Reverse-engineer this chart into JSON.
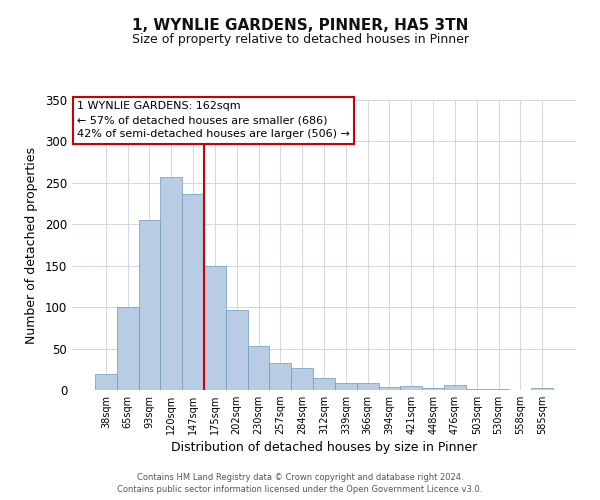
{
  "title": "1, WYNLIE GARDENS, PINNER, HA5 3TN",
  "subtitle": "Size of property relative to detached houses in Pinner",
  "xlabel": "Distribution of detached houses by size in Pinner",
  "ylabel": "Number of detached properties",
  "bar_labels": [
    "38sqm",
    "65sqm",
    "93sqm",
    "120sqm",
    "147sqm",
    "175sqm",
    "202sqm",
    "230sqm",
    "257sqm",
    "284sqm",
    "312sqm",
    "339sqm",
    "366sqm",
    "394sqm",
    "421sqm",
    "448sqm",
    "476sqm",
    "503sqm",
    "530sqm",
    "558sqm",
    "585sqm"
  ],
  "bar_heights": [
    19,
    100,
    205,
    257,
    237,
    150,
    96,
    53,
    33,
    26,
    15,
    8,
    8,
    4,
    5,
    2,
    6,
    1,
    1,
    0,
    2
  ],
  "bar_color": "#b8cce4",
  "bar_edge_color": "#7098c0",
  "vline_x": 4.5,
  "vline_color": "#cc0000",
  "ylim": [
    0,
    350
  ],
  "yticks": [
    0,
    50,
    100,
    150,
    200,
    250,
    300,
    350
  ],
  "annotation_title": "1 WYNLIE GARDENS: 162sqm",
  "annotation_line1": "← 57% of detached houses are smaller (686)",
  "annotation_line2": "42% of semi-detached houses are larger (506) →",
  "annotation_box_color": "#ffffff",
  "annotation_box_edge": "#cc0000",
  "footer_line1": "Contains HM Land Registry data © Crown copyright and database right 2024.",
  "footer_line2": "Contains public sector information licensed under the Open Government Licence v3.0.",
  "background_color": "#ffffff",
  "grid_color": "#d0d8e8"
}
